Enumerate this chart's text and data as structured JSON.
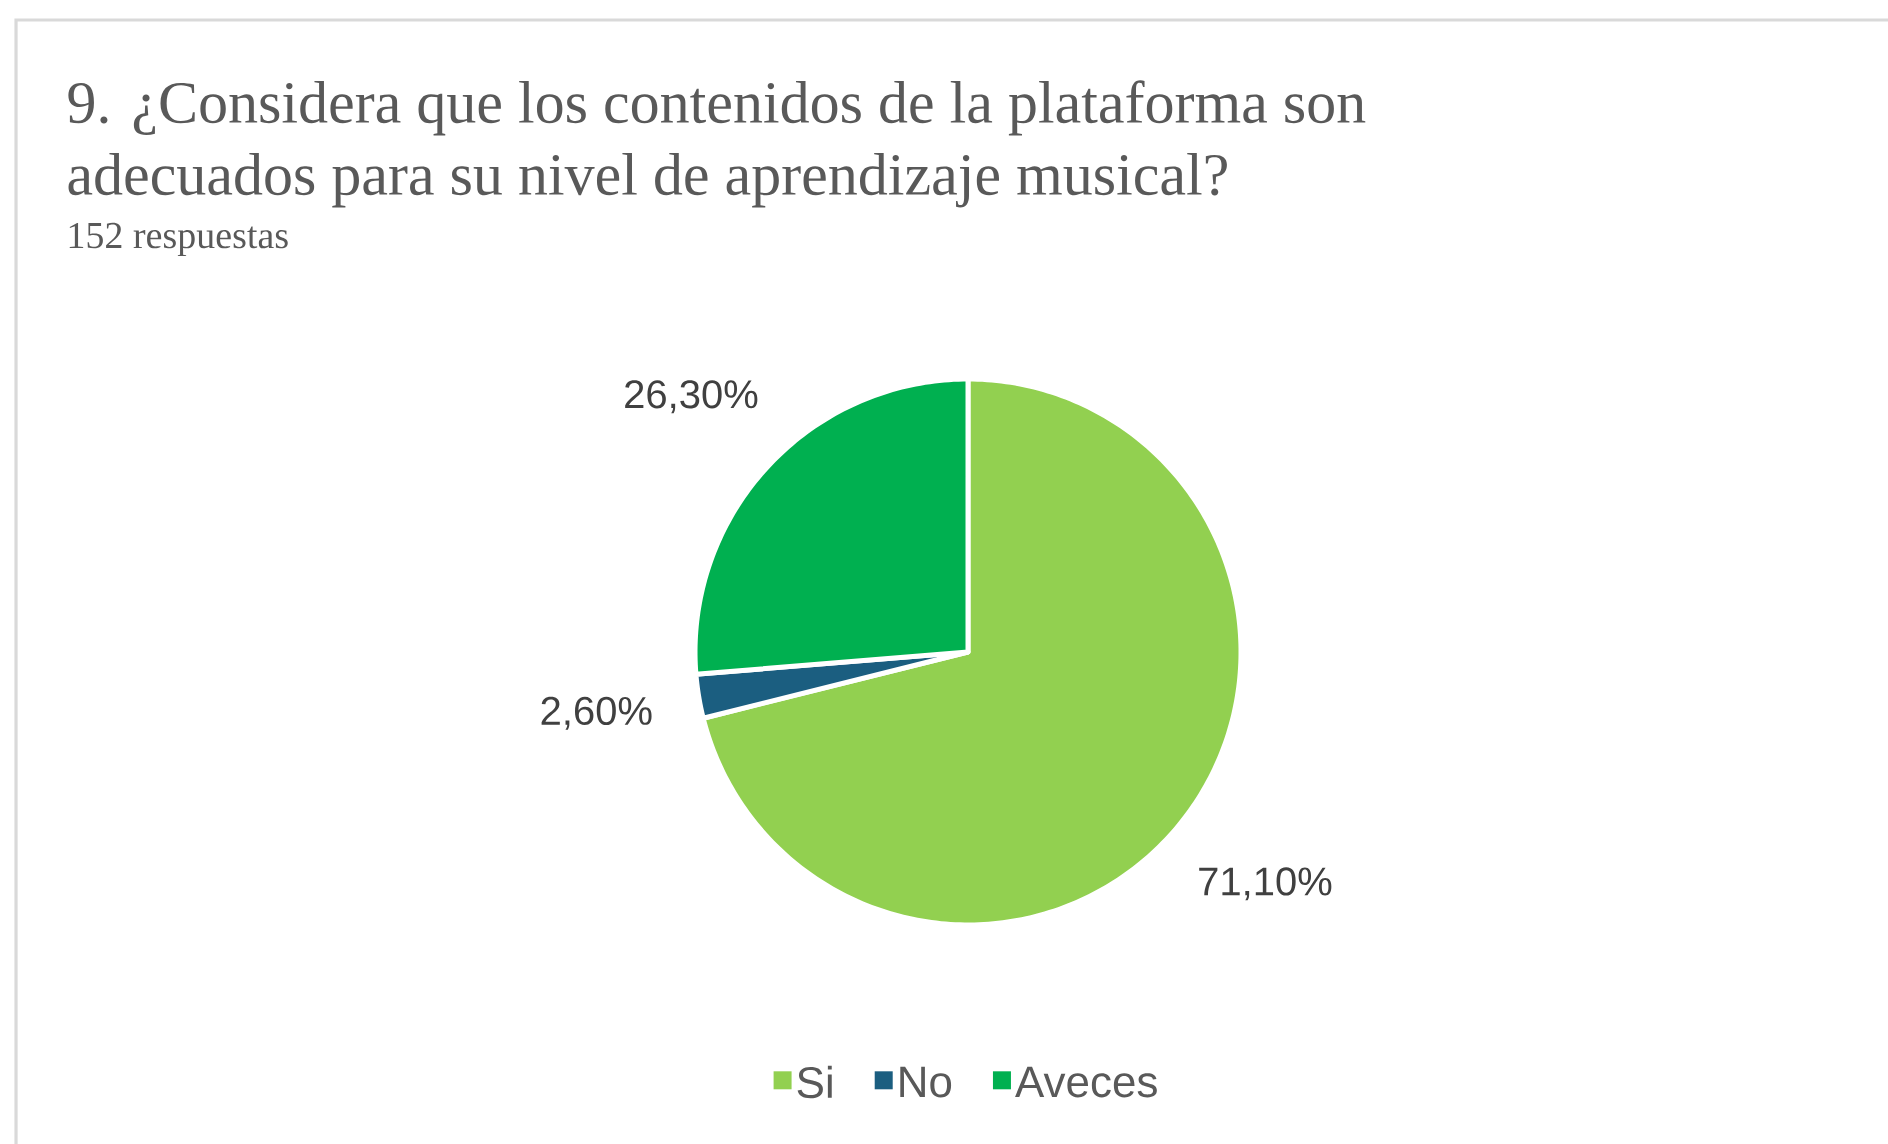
{
  "chart_data": {
    "type": "pie",
    "title": "9. ¿Considera que los contenidos de la plataforma son adecuados para su nivel de aprendizaje musical?",
    "subtitle": "152 respuestas",
    "categories": [
      "Si",
      "No",
      "Aveces"
    ],
    "values": [
      71.1,
      2.6,
      26.3
    ],
    "colors": [
      "#92d050",
      "#1b5e80",
      "#00b050"
    ],
    "value_labels": [
      "71,10%",
      "2,60%",
      "26,30%"
    ],
    "legend": "bottom"
  }
}
